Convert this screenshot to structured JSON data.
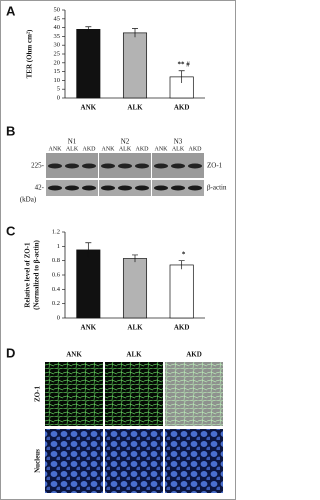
{
  "chart_data": [
    {
      "type": "bar",
      "panel": "A",
      "ylabel": "TER (Ohm cm²)",
      "categories": [
        "ANK",
        "ALK",
        "AKD"
      ],
      "values": [
        39,
        37,
        12
      ],
      "errors": [
        1.5,
        2.5,
        3.5
      ],
      "colors": [
        "#111111",
        "#b3b3b3",
        "#ffffff"
      ],
      "annotation": "** #",
      "ylim": [
        0,
        50
      ],
      "yticks": [
        0,
        5,
        10,
        15,
        20,
        25,
        30,
        35,
        40,
        45,
        50
      ]
    },
    {
      "type": "bar",
      "panel": "C",
      "ylabel": [
        "Relative level of ZO-1",
        "(Normalized to β-actin)"
      ],
      "categories": [
        "ANK",
        "ALK",
        "AKD"
      ],
      "values": [
        0.95,
        0.83,
        0.74
      ],
      "errors": [
        0.1,
        0.05,
        0.06
      ],
      "colors": [
        "#111111",
        "#b3b3b3",
        "#ffffff"
      ],
      "annotation": "*",
      "ylim": [
        0,
        1.2
      ],
      "yticks": [
        0,
        0.2,
        0.4,
        0.6,
        0.8,
        1,
        1.2
      ]
    }
  ],
  "blot": {
    "panel": "B",
    "groups": [
      {
        "label": "N1",
        "lanes": [
          "ANK",
          "ALK",
          "AKD"
        ]
      },
      {
        "label": "N2",
        "lanes": [
          "ANK",
          "ALK",
          "AKD"
        ]
      },
      {
        "label": "N3",
        "lanes": [
          "ANK",
          "ALK",
          "AKD"
        ]
      }
    ],
    "markers": [
      "225-",
      "42-"
    ],
    "unit": "(kDa)",
    "proteins": [
      "ZO-1",
      "β-actin"
    ]
  },
  "microscopy": {
    "panel": "D",
    "columns": [
      "ANK",
      "ALK",
      "AKD"
    ],
    "rows": [
      "ZO-1",
      "Nucleus"
    ]
  }
}
